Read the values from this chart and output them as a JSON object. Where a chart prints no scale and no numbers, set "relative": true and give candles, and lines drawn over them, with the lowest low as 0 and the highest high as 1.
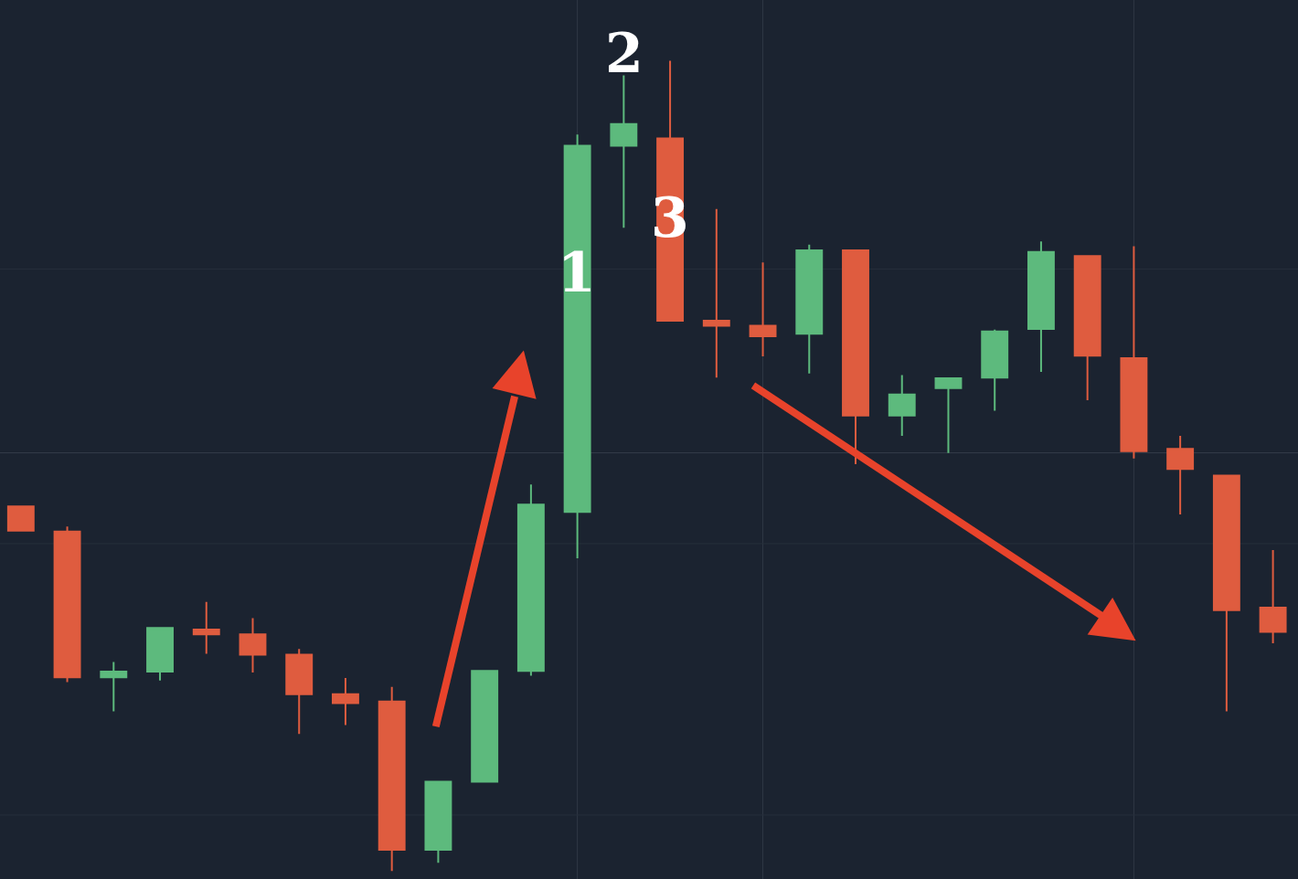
{
  "chart_data": {
    "type": "candlestick",
    "relative": true,
    "grid": "x",
    "categories": [
      null,
      null,
      null,
      null,
      null,
      null,
      null,
      null,
      null,
      null,
      null,
      null,
      null,
      null,
      null,
      null,
      null,
      null,
      null,
      null,
      null,
      null,
      null,
      null,
      null,
      null,
      null,
      null
    ],
    "ohlc": [
      [
        0.45,
        0.45,
        0.42,
        0.42
      ],
      [
        0.419,
        0.425,
        0.233,
        0.239
      ],
      [
        0.239,
        0.258,
        0.197,
        0.246
      ],
      [
        0.246,
        0.301,
        0.235,
        0.3
      ],
      [
        0.298,
        0.332,
        0.268,
        0.292
      ],
      [
        0.292,
        0.312,
        0.245,
        0.267
      ],
      [
        0.267,
        0.274,
        0.169,
        0.218
      ],
      [
        0.218,
        0.238,
        0.18,
        0.207
      ],
      [
        0.209,
        0.227,
        0.0,
        0.026
      ],
      [
        0.026,
        0.11,
        0.01,
        0.11
      ],
      [
        0.11,
        0.247,
        0.11,
        0.247
      ],
      [
        0.247,
        0.477,
        0.241,
        0.452
      ],
      [
        0.443,
        0.909,
        0.386,
        0.895
      ],
      [
        0.895,
        0.982,
        0.794,
        0.922
      ],
      [
        0.904,
        1.0,
        0.679,
        0.679
      ],
      [
        0.679,
        0.817,
        0.609,
        0.673
      ],
      [
        0.673,
        0.751,
        0.635,
        0.66
      ],
      [
        0.663,
        0.773,
        0.614,
        0.766
      ],
      [
        0.766,
        0.766,
        0.502,
        0.562
      ],
      [
        0.562,
        0.612,
        0.537,
        0.588
      ],
      [
        0.596,
        0.608,
        0.516,
        0.608
      ],
      [
        0.609,
        0.668,
        0.568,
        0.666
      ],
      [
        0.669,
        0.777,
        0.616,
        0.764
      ],
      [
        0.759,
        0.759,
        0.581,
        0.636
      ],
      [
        0.633,
        0.771,
        0.509,
        0.518
      ],
      [
        0.521,
        0.537,
        0.44,
        0.496
      ],
      [
        0.488,
        0.488,
        0.197,
        0.322
      ],
      [
        0.325,
        0.396,
        0.281,
        0.295
      ]
    ],
    "colors": [
      "#df5c3f",
      "#df5c3f",
      "#5dba7d",
      "#5dba7d",
      "#df5c3f",
      "#df5c3f",
      "#df5c3f",
      "#df5c3f",
      "#df5c3f",
      "#5dba7d",
      "#5dba7d",
      "#5dba7d",
      "#5dba7d",
      "#5dba7d",
      "#df5c3f",
      "#df5c3f",
      "#df5c3f",
      "#5dba7d",
      "#df5c3f",
      "#5dba7d",
      "#5dba7d",
      "#5dba7d",
      "#5dba7d",
      "#df5c3f",
      "#df5c3f",
      "#df5c3f",
      "#df5c3f",
      "#df5c3f"
    ],
    "ref_lines": [
      {
        "axis": "y",
        "value": 0.743,
        "color": "#272f3c"
      },
      {
        "axis": "y",
        "value": 0.516,
        "color": "#353d4a"
      },
      {
        "axis": "y",
        "value": 0.404,
        "color": "#272f3c"
      },
      {
        "axis": "y",
        "value": 0.069,
        "color": "#272f3c"
      }
    ],
    "annotations": [
      "1",
      "2",
      "3"
    ]
  }
}
